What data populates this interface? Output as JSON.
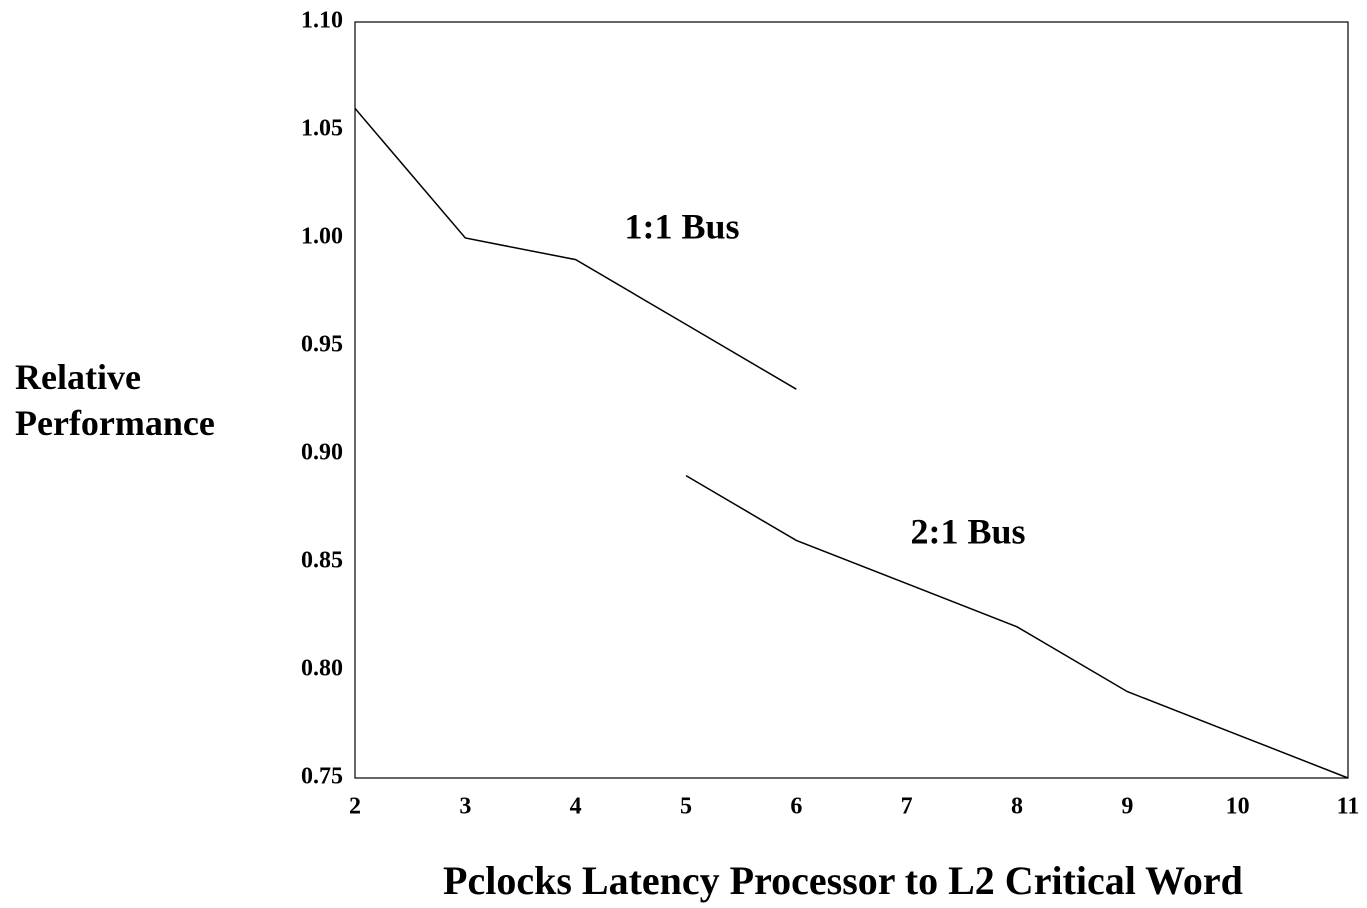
{
  "chart_data": {
    "type": "line",
    "xlabel": "Pclocks Latency Processor to L2 Critical Word",
    "ylabel": "Relative Performance",
    "series": [
      {
        "name": "1:1 Bus",
        "color": "#000000",
        "x": [
          2,
          3,
          4,
          5,
          6
        ],
        "values": [
          1.06,
          1.0,
          0.99,
          0.96,
          0.93
        ]
      },
      {
        "name": "2:1 Bus",
        "color": "#000000",
        "x": [
          5,
          6,
          7,
          8,
          9,
          10,
          11
        ],
        "values": [
          0.89,
          0.86,
          0.84,
          0.82,
          0.79,
          0.77,
          0.75
        ]
      }
    ],
    "xlim": [
      2,
      11
    ],
    "xticks": [
      2,
      3,
      4,
      5,
      6,
      7,
      8,
      9,
      10,
      11
    ],
    "ylim": [
      0.75,
      1.1
    ],
    "yticks": [
      0.75,
      {
        "value": 0.8,
        "label": "0.80"
      },
      0.85,
      {
        "value": 0.9,
        "label": "0.90"
      },
      0.95,
      {
        "value": 1.0,
        "label": "1.00"
      },
      1.05,
      {
        "value": 1.1,
        "label": "1.10"
      }
    ],
    "grid": false
  }
}
